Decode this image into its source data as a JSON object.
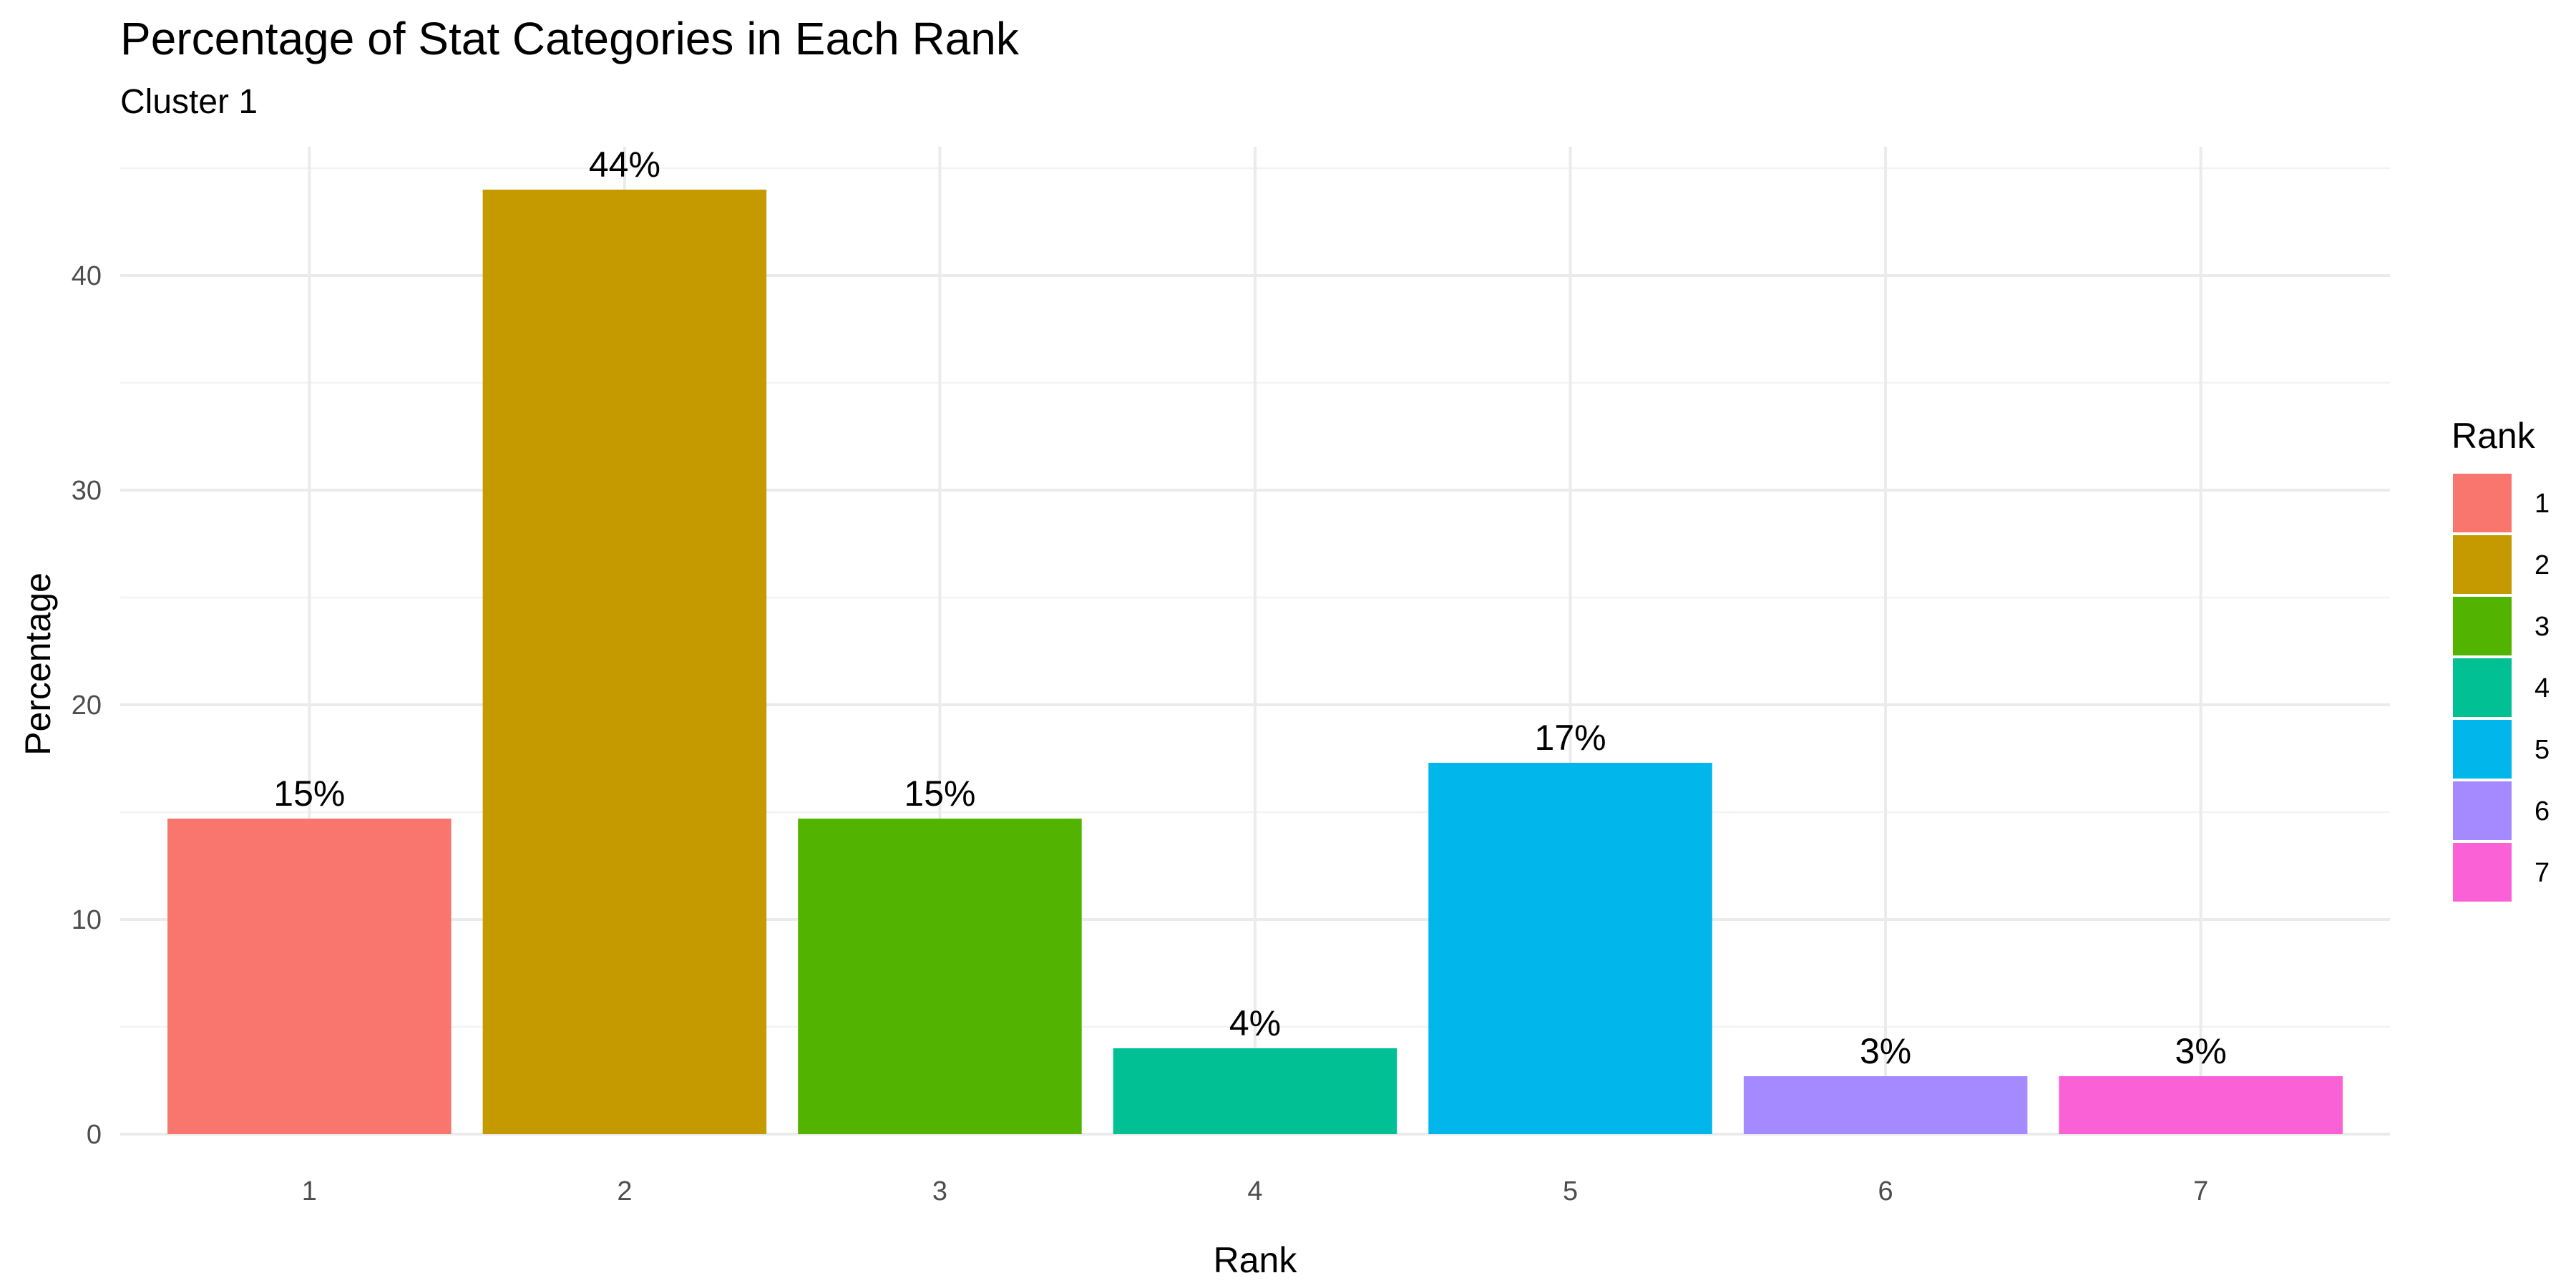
{
  "chart_data": {
    "type": "bar",
    "title": "Percentage of Stat Categories in Each Rank",
    "subtitle": "Cluster 1",
    "xlabel": "Rank",
    "ylabel": "Percentage",
    "categories": [
      "1",
      "2",
      "3",
      "4",
      "5",
      "6",
      "7"
    ],
    "values": [
      14.7,
      44.0,
      14.7,
      4.0,
      17.3,
      2.7,
      2.7
    ],
    "data_labels": [
      "15%",
      "44%",
      "15%",
      "4%",
      "17%",
      "3%",
      "3%"
    ],
    "colors": [
      "#F8766D",
      "#C49A00",
      "#53B400",
      "#00C094",
      "#00B6EB",
      "#A58AFF",
      "#FB61D7"
    ],
    "ylim": [
      0,
      46
    ],
    "yticks": [
      0,
      10,
      20,
      30,
      40
    ],
    "grid": true,
    "legend": {
      "title": "Rank",
      "placement": "right",
      "entries": [
        "1",
        "2",
        "3",
        "4",
        "5",
        "6",
        "7"
      ]
    }
  }
}
